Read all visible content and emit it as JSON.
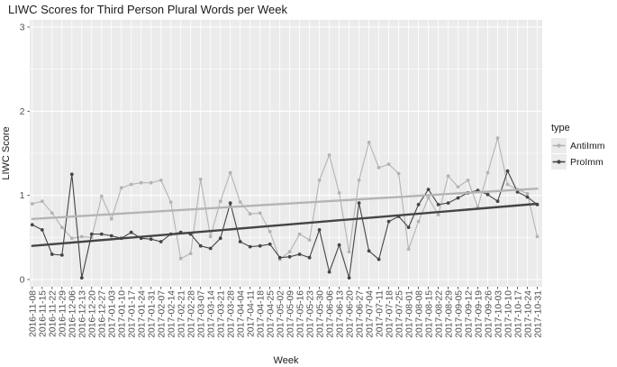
{
  "title": "LIWC Scores for Third Person Plural Words per Week",
  "axes": {
    "x_label": "Week",
    "y_label": "LIWC Score",
    "y_ticks": [
      "0",
      "1",
      "2",
      "3"
    ]
  },
  "legend": {
    "title": "type",
    "entries": [
      "AntiImm",
      "ProImm"
    ]
  },
  "colors": {
    "page_bg": "#ffffff",
    "panel_bg": "#ebebeb",
    "grid": "#ffffff",
    "antiimm": "#b4b4b4",
    "proimm": "#454545",
    "axis_text": "#4d4d4d",
    "title_text": "#1a1a1a",
    "legend_key_bg": "#ebebeb",
    "tick_mark": "#333333"
  },
  "chart_data": {
    "type": "line",
    "title": "LIWC Scores for Third Person Plural Words per Week",
    "xlabel": "Week",
    "ylabel": "LIWC Score",
    "ylim": [
      0,
      3
    ],
    "grid": true,
    "legend_position": "right",
    "legend_title": "type",
    "categories": [
      "2016-11-08",
      "2016-11-15",
      "2016-11-22",
      "2016-11-29",
      "2016-12-06",
      "2016-12-13",
      "2016-12-20",
      "2016-12-27",
      "2017-01-03",
      "2017-01-10",
      "2017-01-17",
      "2017-01-24",
      "2017-01-31",
      "2017-02-07",
      "2017-02-14",
      "2017-02-21",
      "2017-02-28",
      "2017-03-07",
      "2017-03-14",
      "2017-03-21",
      "2017-03-28",
      "2017-04-04",
      "2017-04-11",
      "2017-04-18",
      "2017-04-25",
      "2017-05-02",
      "2017-05-09",
      "2017-05-16",
      "2017-05-23",
      "2017-05-30",
      "2017-06-06",
      "2017-06-13",
      "2017-06-20",
      "2017-06-27",
      "2017-07-04",
      "2017-07-11",
      "2017-07-18",
      "2017-07-25",
      "2017-08-01",
      "2017-08-08",
      "2017-08-15",
      "2017-08-22",
      "2017-08-29",
      "2017-09-05",
      "2017-09-12",
      "2017-09-19",
      "2017-09-26",
      "2017-10-03",
      "2017-10-10",
      "2017-10-17",
      "2017-10-24",
      "2017-10-31"
    ],
    "series": [
      {
        "name": "AntiImm",
        "color": "#b4b4b4",
        "values": [
          0.9,
          0.93,
          0.79,
          0.62,
          0.49,
          0.51,
          0.5,
          0.99,
          0.72,
          1.09,
          1.13,
          1.15,
          1.15,
          1.18,
          0.92,
          0.25,
          0.31,
          1.19,
          0.51,
          0.93,
          1.27,
          0.92,
          0.78,
          0.79,
          0.57,
          0.24,
          0.33,
          0.54,
          0.47,
          1.18,
          1.48,
          1.03,
          0.33,
          1.18,
          1.63,
          1.33,
          1.37,
          1.26,
          0.36,
          0.69,
          0.97,
          0.77,
          1.23,
          1.1,
          1.18,
          0.86,
          1.27,
          1.68,
          1.13,
          1.07,
          1.02,
          0.51
        ],
        "trend_line": {
          "start": 0.72,
          "end": 1.08
        }
      },
      {
        "name": "ProImm",
        "color": "#454545",
        "values": [
          0.65,
          0.59,
          0.3,
          0.29,
          1.25,
          0.02,
          0.54,
          0.54,
          0.52,
          0.49,
          0.56,
          0.49,
          0.48,
          0.45,
          0.54,
          0.56,
          0.54,
          0.4,
          0.37,
          0.49,
          0.91,
          0.45,
          0.39,
          0.4,
          0.42,
          0.26,
          0.27,
          0.3,
          0.26,
          0.59,
          0.09,
          0.41,
          0.02,
          0.91,
          0.34,
          0.24,
          0.69,
          0.75,
          0.62,
          0.89,
          1.07,
          0.89,
          0.91,
          0.97,
          1.03,
          1.06,
          1.01,
          0.93,
          1.29,
          1.04,
          0.98,
          0.89
        ],
        "trend_line": {
          "start": 0.4,
          "end": 0.9
        }
      }
    ]
  }
}
